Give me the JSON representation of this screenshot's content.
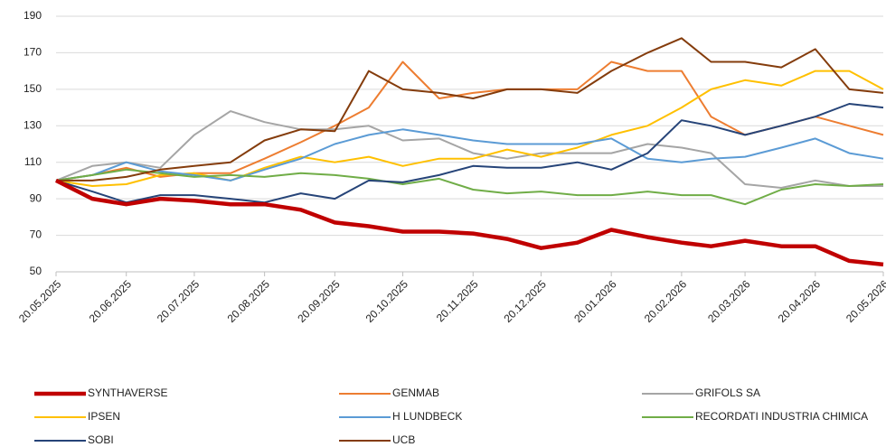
{
  "chart_data": {
    "type": "line",
    "x": [
      "2025-05-20",
      "2025-06-05",
      "2025-06-20",
      "2025-07-05",
      "2025-07-20",
      "2025-08-05",
      "2025-08-20",
      "2025-09-05",
      "2025-09-20",
      "2025-10-05",
      "2025-10-20",
      "2025-11-05",
      "2025-11-20",
      "2025-12-05",
      "2025-12-20",
      "2026-01-05",
      "2026-01-20",
      "2026-02-05",
      "2026-02-20",
      "2026-03-05",
      "2026-03-20",
      "2026-04-05",
      "2026-04-20",
      "2026-05-05",
      "2026-05-20"
    ],
    "xlim": [
      "2025-05-20",
      "2026-05-20"
    ],
    "xticks": [
      {
        "value": "2025-05-20",
        "label": "20.05.2025"
      },
      {
        "value": "2025-06-20",
        "label": "20.06.2025"
      },
      {
        "value": "2025-07-20",
        "label": "20.07.2025"
      },
      {
        "value": "2025-08-20",
        "label": "20.08.2025"
      },
      {
        "value": "2025-09-20",
        "label": "20.09.2025"
      },
      {
        "value": "2025-10-20",
        "label": "20.10.2025"
      },
      {
        "value": "2025-11-20",
        "label": "20.11.2025"
      },
      {
        "value": "2025-12-20",
        "label": "20.12.2025"
      },
      {
        "value": "2026-01-20",
        "label": "20.01.2026"
      },
      {
        "value": "2026-02-20",
        "label": "20.02.2026"
      },
      {
        "value": "2026-03-20",
        "label": "20.03.2026"
      },
      {
        "value": "2026-04-20",
        "label": "20.04.2026"
      },
      {
        "value": "2026-05-20",
        "label": "20.05.2026"
      }
    ],
    "ylim": [
      50,
      190
    ],
    "yticks": [
      50,
      70,
      90,
      110,
      130,
      150,
      170,
      190
    ],
    "grid": true,
    "series": [
      {
        "name": "SYNTHAVERSE",
        "color": "#c00000",
        "values": [
          100,
          90,
          87,
          90,
          89,
          87,
          87,
          84,
          77,
          75,
          72,
          72,
          71,
          68,
          63,
          66,
          73,
          69,
          66,
          64,
          67,
          64,
          64,
          56,
          54
        ]
      },
      {
        "name": "GENMAB",
        "color": "#ed7d31",
        "values": [
          100,
          103,
          107,
          102,
          104,
          104,
          112,
          121,
          130,
          140,
          165,
          145,
          148,
          150,
          150,
          150,
          165,
          160,
          160,
          135,
          125,
          130,
          135,
          130,
          125
        ]
      },
      {
        "name": "GRIFOLS SA",
        "color": "#a5a5a5",
        "values": [
          100,
          108,
          110,
          107,
          125,
          138,
          132,
          128,
          128,
          130,
          122,
          123,
          115,
          112,
          115,
          115,
          115,
          120,
          118,
          115,
          98,
          96,
          100,
          97,
          97
        ]
      },
      {
        "name": "IPSEN",
        "color": "#ffc000",
        "values": [
          100,
          97,
          98,
          103,
          104,
          100,
          107,
          113,
          110,
          113,
          108,
          112,
          112,
          117,
          113,
          118,
          125,
          130,
          140,
          150,
          155,
          152,
          160,
          160,
          150
        ]
      },
      {
        "name": "H LUNDBECK",
        "color": "#5b9bd5",
        "values": [
          100,
          103,
          110,
          105,
          103,
          100,
          106,
          112,
          120,
          125,
          128,
          125,
          122,
          120,
          120,
          120,
          123,
          112,
          110,
          112,
          113,
          118,
          123,
          115,
          112
        ]
      },
      {
        "name": "RECORDATI INDUSTRIA CHIMICA",
        "color": "#70ad47",
        "values": [
          100,
          103,
          106,
          104,
          102,
          103,
          102,
          104,
          103,
          101,
          98,
          101,
          95,
          93,
          94,
          92,
          92,
          94,
          92,
          92,
          87,
          95,
          98,
          97,
          98
        ]
      },
      {
        "name": "SOBI",
        "color": "#264478",
        "values": [
          100,
          94,
          88,
          92,
          92,
          90,
          88,
          93,
          90,
          100,
          99,
          103,
          108,
          107,
          107,
          110,
          106,
          115,
          133,
          130,
          125,
          130,
          135,
          142,
          140
        ]
      },
      {
        "name": "UCB",
        "color": "#843c0c",
        "values": [
          100,
          100,
          102,
          106,
          108,
          110,
          122,
          128,
          127,
          160,
          150,
          148,
          145,
          150,
          150,
          148,
          160,
          170,
          178,
          165,
          165,
          162,
          172,
          150,
          148
        ]
      }
    ]
  }
}
